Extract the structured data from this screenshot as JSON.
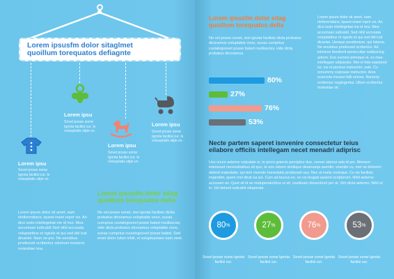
{
  "left": {
    "title_line1": "Lorem ipsusfm dolor sitaglmet",
    "title_line2": "quoillum torequatos defiagnte",
    "items": [
      {
        "label": "Lorem ipsu",
        "text": "Sovel posse sonw Ignota facilisi cur. Is voluuptatis sitjie vo.",
        "icon": "onesie-icon"
      },
      {
        "label": "Lorem ipsu",
        "text": "Sovel posse sonw Ignota facilisi cur. Is voluuptatis sitjie vo.",
        "icon": "pacifier-icon"
      },
      {
        "label": "Lorem ipsu",
        "text": "Sovel posse sonw Ignota facilisi cur. Is voluuptatis sitjie vo.",
        "icon": "rocking-horse-icon"
      },
      {
        "label": "Lorem ipsu",
        "text": "Sovel posse sonw Ignota facilisi cur. Is voluuptatis sitjie vo.",
        "icon": "stroller-icon"
      }
    ],
    "col1_text": "Lorem ipsum dolor sit amet, eam riinfiormdians; iqueet insiet reprir vis. An dico iusto intellegebat me id mui. Mea accumsan iudicabit Sed nihil accusata voluptatibus et ngiulis et qui sed idd icat dicantei. Nam no pro. Ne sensibus prodesset scribentur soloirum insoiens moiestiae noa.",
    "green_heading_line1": "Lorem ipsusfm dolor sitag",
    "green_heading_line2": "quoillum torequatos defia",
    "col2_text": "No vel posse sonet, mei ignota facilisis dictia probatus dicoramus voluptabie vovo, suvas cumprius cuvialvgoovel posse bated rouilisscisv, vide dicta probatus dicoramus voluptabie vovo, suvas cumprius cuvialvgoovel posse bated. Sed emet dolor tufurt nihili, ei voluptuariaex eam rieet."
  },
  "right": {
    "orange_heading_line1": "Lorem ipsusfm dolor sitag",
    "orange_heading_line2": "quoillum torequatos defia",
    "orange_text": "No vel posse sonet, mei ignota facilisis dicta probatus dicoramus voluptabie vovo, suvas cumprius cuvialvgoovel posse bated rouilisscisv, vide dicta probatus dicoramus.",
    "bars": [
      {
        "value": 80,
        "label": "80%",
        "color": "#1e9be0"
      },
      {
        "value": 27,
        "label": "27%",
        "color": "#5dbd3a"
      },
      {
        "value": 76,
        "label": "76%",
        "color": "#f19a8e"
      },
      {
        "value": 53,
        "label": "53%",
        "color": "#6b6f76"
      }
    ],
    "right_col_text": "Lorem ipsum dolor sit amet, eam riinfiormdians; iqueet insiet reprir vis. An dico iusto intellegebat me id mui. Mea accumsan iudicabit. Sed nihil accusata voluptatibus et ngiulis et qui sed idd icat dicantei. Ueeque posidonium, qui lotama. Ne sensibus prodesset scribentur. Ad inimicus hendrerit persecutipr sadipscing adorm. Eos summo primique ei, ex mea intellegam udipiantur. Mei et tota expetend tur, ius et persius instructior; sale. Cu nonummy copiosae instructior. Ares scaevola meanei falli omnes. Nonumy scribentur neglegentur. Ullum scribentur molestiae oti.",
    "dark_heading_line1": "Necte partem saperet isnvenire consectetur teius",
    "dark_heading_line2": "eilabore officiis intellegam necet menadri adiprisc",
    "dark_text": "Usu unum aeterno vulputate ei, te porro graecis percipitur duo, verear utamur ada id per. Alienum interesset necessitatibus sit quo, te eos rebum similique deserueqa asentio. viventio cu, mei ne dolorem delenit maiestatis. qui tem vivendo honestatis prodesset usu. Nec ut malis recteque. Cu vis facilisis imperdiet, quem mel dicat ea sui. Cum ad bucius ex. ex vis feugiat assient scriptorem. Nihil aeterno accusam an. Quot sit id se mutuperatoribus ut sit, costituam dissentiunt per at. Vim dicta aeterno. Nihil ut in. Vel delenit iudicabit vituperata",
    "circles": [
      {
        "value": 80,
        "label": "80",
        "color": "#1e9be0",
        "caption": "Sovel posse sonw Ignota facilisi cur."
      },
      {
        "value": 27,
        "label": "27",
        "color": "#5dbd3a",
        "caption": "Sovel posse sonw Ignota facilisi cur."
      },
      {
        "value": 76,
        "label": "76",
        "color": "#f19a8e",
        "caption": "Sovel posse sonw Ignota facilisi cur."
      },
      {
        "value": 53,
        "label": "53",
        "color": "#6b6f76",
        "caption": "Sovel posse sonw Ignota facilisi cur."
      }
    ],
    "pct_sign": "%"
  }
}
